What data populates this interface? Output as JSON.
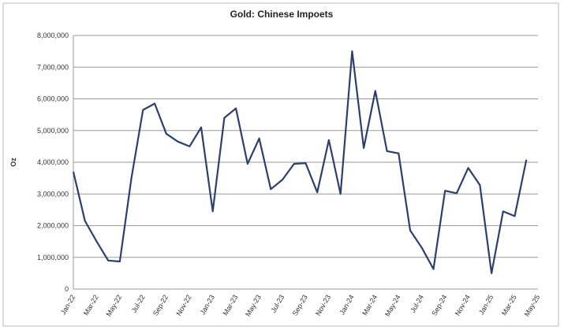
{
  "chart_data": {
    "type": "line",
    "title": "Gold: Chinese Impoets",
    "y_label": "Oz",
    "categories": [
      "Jan-22",
      null,
      "Mar-22",
      null,
      "May-22",
      null,
      "Jul-22",
      null,
      "Sep-22",
      null,
      "Nov-22",
      null,
      "Jan-23",
      null,
      "Mar-23",
      null,
      "May-23",
      null,
      "Jul-23",
      null,
      "Sep-23",
      null,
      "Nov-23",
      null,
      "Jan-24",
      null,
      "Mar-24",
      null,
      "May-24",
      null,
      "Jul-24",
      null,
      "Sep-24",
      null,
      "Nov-24",
      null,
      "Jan-25",
      null,
      "Mar-25",
      null,
      "May-25"
    ],
    "series": [
      {
        "name": "Gold: Chinese Impoets",
        "color": "#2e3f6e",
        "values": [
          3700000,
          2150000,
          1500000,
          900000,
          870000,
          3500000,
          5650000,
          5850000,
          4900000,
          4650000,
          4500000,
          5100000,
          2450000,
          5400000,
          5700000,
          3950000,
          4750000,
          3150000,
          3450000,
          3950000,
          3970000,
          3050000,
          4700000,
          3000000,
          7500000,
          4450000,
          6250000,
          4350000,
          4280000,
          1850000,
          1300000,
          630000,
          3100000,
          3020000,
          3820000,
          3280000,
          500000,
          2450000,
          2300000,
          4080000,
          null
        ]
      }
    ],
    "ylim": [
      0,
      8000000
    ],
    "yticks": [
      0,
      {
        "value": 1000000,
        "label": "1,000,000"
      },
      {
        "value": 2000000,
        "label": "2,000,000"
      },
      {
        "value": 3000000,
        "label": "3,000,000"
      },
      {
        "value": 4000000,
        "label": "4,000,000"
      },
      {
        "value": 5000000,
        "label": "5,000,000"
      },
      {
        "value": 6000000,
        "label": "6,000,000"
      },
      {
        "value": 7000000,
        "label": "7,000,000"
      },
      {
        "value": 8000000,
        "label": "8,000,000"
      }
    ],
    "grid": true
  }
}
